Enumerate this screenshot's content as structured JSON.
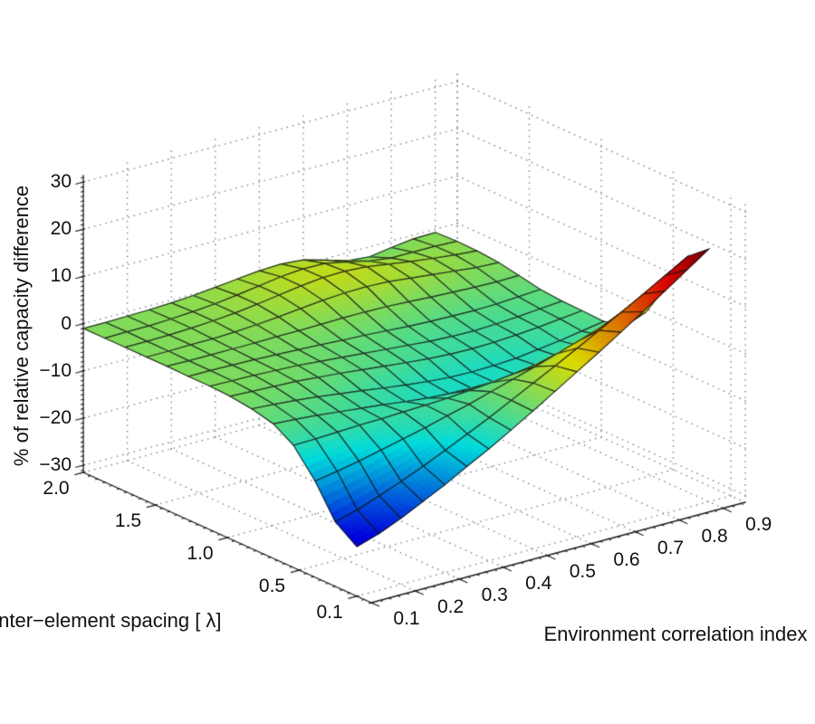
{
  "figure": {
    "background": "#ffffff",
    "title": ""
  },
  "chart_data": {
    "type": "surface",
    "colormap": "jet",
    "color_range": [
      -26,
      22
    ],
    "mesh_color": "#141414",
    "grid_dot_color": "#838d8f",
    "axis_line_color": "#222222",
    "x_axis": {
      "label": "Environment correlation index",
      "range": [
        0.1,
        0.95
      ],
      "ticks": [
        0.1,
        0.2,
        0.3,
        0.4,
        0.5,
        0.6,
        0.7,
        0.8,
        0.9
      ],
      "tick_labels": [
        "0.1",
        "0.2",
        "0.3",
        "0.4",
        "0.5",
        "0.6",
        "0.7",
        "0.8",
        "0.9"
      ]
    },
    "y_axis": {
      "label": "Inter−element spacing [ λ]",
      "range": [
        0,
        2
      ],
      "ticks": [
        0.1,
        0.5,
        1.0,
        1.5,
        2.0
      ],
      "tick_labels": [
        "0.1",
        "0.5",
        "1.0",
        "1.5",
        "2.0"
      ]
    },
    "z_axis": {
      "label": "% of relative capacity difference",
      "range": [
        -31.5,
        31.5
      ],
      "ticks": [
        30,
        20,
        10,
        0,
        -10,
        -20,
        -30
      ],
      "tick_labels": [
        "30",
        "20",
        "10",
        "0",
        "−10",
        "−20",
        "−30"
      ]
    },
    "x_values": [
      0.1,
      0.15,
      0.2,
      0.25,
      0.3,
      0.35,
      0.4,
      0.45,
      0.5,
      0.55,
      0.6,
      0.65,
      0.7,
      0.75,
      0.8,
      0.85,
      0.9
    ],
    "y_values": [
      0.1,
      0.25,
      0.39,
      0.54,
      0.68,
      0.83,
      0.98,
      1.12,
      1.27,
      1.42,
      1.56,
      1.71,
      1.85,
      2.0
    ],
    "z_matrix": [
      [
        -21.0,
        -19.5,
        -17.5,
        -15.2,
        -12.9,
        -10.3,
        -7.8,
        -5.1,
        -2.3,
        0.6,
        3.5,
        6.4,
        9.4,
        12.5,
        15.6,
        18.8,
        22.0
      ],
      [
        -17.8,
        -16.5,
        -14.8,
        -13.0,
        -11.0,
        -8.9,
        -6.7,
        -4.5,
        -2.1,
        0.3,
        2.7,
        5.2,
        7.7,
        10.3,
        12.9,
        15.6,
        18.3
      ],
      [
        -11.1,
        -10.3,
        -9.4,
        -8.3,
        -7.2,
        -6.1,
        -4.8,
        -3.6,
        -2.2,
        -0.8,
        0.6,
        2.1,
        3.6,
        5.2,
        6.9,
        8.5,
        10.2
      ],
      [
        -5.6,
        -5.5,
        -5.3,
        -5.1,
        -5.0,
        -4.8,
        -4.6,
        -4.4,
        -4.0,
        -3.6,
        -3.0,
        -2.3,
        -1.4,
        -0.5,
        0.5,
        1.5,
        2.5
      ],
      [
        -3.0,
        -3.3,
        -3.7,
        -4.2,
        -4.7,
        -5.2,
        -5.8,
        -6.3,
        -6.6,
        -6.7,
        -6.6,
        -6.3,
        -5.7,
        -5.0,
        -4.1,
        -3.2,
        -2.3
      ],
      [
        -1.9,
        -2.2,
        -2.6,
        -3.1,
        -3.7,
        -4.3,
        -5.0,
        -5.6,
        -6.1,
        -6.5,
        -6.6,
        -6.5,
        -6.2,
        -5.6,
        -5.0,
        -4.2,
        -3.4
      ],
      [
        -1.3,
        -1.5,
        -1.7,
        -1.9,
        -2.3,
        -2.7,
        -3.2,
        -3.7,
        -4.2,
        -4.6,
        -4.9,
        -5.0,
        -4.9,
        -4.6,
        -4.2,
        -3.7,
        -3.2
      ],
      [
        -1.1,
        -1.2,
        -1.3,
        -1.5,
        -1.7,
        -2.1,
        -2.5,
        -2.9,
        -3.3,
        -3.7,
        -4.1,
        -4.3,
        -4.4,
        -4.2,
        -3.9,
        -3.5,
        -3.1
      ],
      [
        -1.1,
        -1.1,
        -1.2,
        -1.3,
        -1.5,
        -1.7,
        -1.9,
        -2.2,
        -2.4,
        -2.7,
        -3.0,
        -3.2,
        -3.3,
        -3.4,
        -3.3,
        -3.0,
        -2.7
      ],
      [
        -1.0,
        -1.1,
        -1.1,
        -1.1,
        -1.1,
        -1.0,
        -1.0,
        -0.9,
        -0.8,
        -0.8,
        -0.9,
        -1.1,
        -1.4,
        -1.6,
        -1.8,
        -1.9,
        -1.8
      ],
      [
        -1.0,
        -1.0,
        -0.9,
        -0.9,
        -0.7,
        -0.4,
        0.0,
        0.5,
        1.0,
        1.3,
        1.4,
        1.2,
        0.7,
        0.2,
        -0.3,
        -0.8,
        -1.0
      ],
      [
        -1.0,
        -1.0,
        -0.9,
        -0.7,
        -0.4,
        0.0,
        0.6,
        1.3,
        2.0,
        2.5,
        2.6,
        2.3,
        1.6,
        0.9,
        0.3,
        -0.2,
        -0.6
      ],
      [
        -1.0,
        -0.9,
        -0.9,
        -0.7,
        -0.4,
        0.0,
        0.6,
        1.3,
        2.0,
        2.4,
        2.3,
        1.4,
        0.3,
        -0.3,
        -0.3,
        -0.3,
        -0.5
      ],
      [
        -1.0,
        -1.0,
        -0.9,
        -0.8,
        -0.6,
        -0.3,
        0.2,
        0.7,
        1.2,
        1.4,
        1.0,
        -0.3,
        -1.7,
        -2.1,
        -1.4,
        -0.8,
        -0.7
      ]
    ]
  }
}
